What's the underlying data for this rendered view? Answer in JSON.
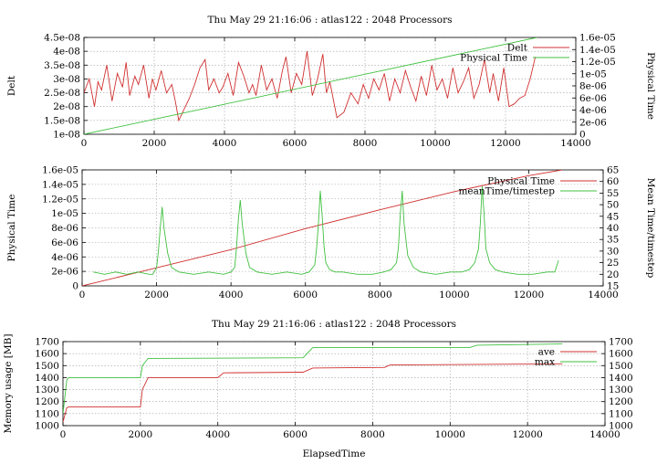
{
  "chart_data": [
    {
      "type": "line",
      "title": "Thu May 29 21:16:06 : atlas122 : 2048 Processors",
      "xlabel": "",
      "ylabel": "Delt",
      "y2label": "Physical Time",
      "xlim": [
        0,
        14000
      ],
      "ylim": [
        1e-08,
        4.5e-08
      ],
      "y2lim": [
        0,
        1.6e-05
      ],
      "xticks": [
        "0",
        "2000",
        "4000",
        "6000",
        "8000",
        "10000",
        "12000",
        "14000"
      ],
      "yticks": [
        "1e-08",
        "1.5e-08",
        "2e-08",
        "2.5e-08",
        "3e-08",
        "3.5e-08",
        "4e-08",
        "4.5e-08"
      ],
      "y2ticks": [
        "0",
        "2e-06",
        "4e-06",
        "6e-06",
        "8e-06",
        "1e-05",
        "1.2e-05",
        "1.4e-05",
        "1.6e-05"
      ],
      "grid": true,
      "legend_position": "top-right",
      "series": [
        {
          "name": "Delt",
          "axis": "y",
          "color": "#d03030",
          "x": [
            0,
            150,
            300,
            400,
            500,
            650,
            800,
            950,
            1100,
            1200,
            1300,
            1450,
            1550,
            1700,
            1850,
            1950,
            2050,
            2200,
            2350,
            2500,
            2600,
            2700,
            2850,
            3000,
            3150,
            3300,
            3450,
            3550,
            3700,
            3850,
            3950,
            4100,
            4250,
            4400,
            4550,
            4700,
            4800,
            4900,
            5050,
            5200,
            5350,
            5500,
            5650,
            5750,
            5900,
            6050,
            6200,
            6350,
            6500,
            6650,
            6800,
            6900,
            7000,
            7200,
            7400,
            7600,
            7800,
            7950,
            8100,
            8250,
            8400,
            8550,
            8700,
            8850,
            9000,
            9150,
            9300,
            9450,
            9600,
            9750,
            9900,
            10050,
            10200,
            10350,
            10500,
            10650,
            10800,
            10950,
            11100,
            11250,
            11400,
            11550,
            11650,
            11800,
            11950,
            12100,
            12250,
            12400,
            12550,
            12700,
            12850
          ],
          "y": [
            2.5e-08,
            3e-08,
            2e-08,
            2.9e-08,
            2.6e-08,
            3.5e-08,
            2.2e-08,
            3.2e-08,
            2.7e-08,
            3.6e-08,
            2.4e-08,
            3.1e-08,
            2.8e-08,
            3.5e-08,
            2.3e-08,
            3e-08,
            2.6e-08,
            3.3e-08,
            2.5e-08,
            2.8e-08,
            2.2e-08,
            1.5e-08,
            1.9e-08,
            2.3e-08,
            2.8e-08,
            3.4e-08,
            3.7e-08,
            2.6e-08,
            3e-08,
            2.5e-08,
            2.7e-08,
            3.2e-08,
            2.4e-08,
            3.6e-08,
            3.1e-08,
            2.5e-08,
            2.8e-08,
            2.4e-08,
            3.5e-08,
            2.6e-08,
            3e-08,
            2.3e-08,
            3.3e-08,
            3.8e-08,
            2.5e-08,
            3.2e-08,
            2.8e-08,
            4e-08,
            2.4e-08,
            3e-08,
            3.9e-08,
            2.5e-08,
            2.9e-08,
            1.6e-08,
            1.8e-08,
            2.5e-08,
            2.1e-08,
            2.8e-08,
            2.3e-08,
            3e-08,
            2.6e-08,
            3.2e-08,
            2.2e-08,
            3e-08,
            2.5e-08,
            3.3e-08,
            2.7e-08,
            2.2e-08,
            3.1e-08,
            2.4e-08,
            3.5e-08,
            2.6e-08,
            3e-08,
            2.3e-08,
            3.4e-08,
            2.5e-08,
            2.9e-08,
            3.4e-08,
            2.3e-08,
            2.8e-08,
            3.7e-08,
            2.5e-08,
            3.2e-08,
            2.2e-08,
            3.4e-08,
            2e-08,
            2.1e-08,
            2.3e-08,
            2.4e-08,
            3e-08,
            3.8e-08
          ]
        },
        {
          "name": "Physical Time",
          "axis": "y2",
          "color": "#40c040",
          "x": [
            0,
            12900
          ],
          "y": [
            0,
            1.6e-05
          ]
        }
      ]
    },
    {
      "type": "line",
      "title": "",
      "xlabel": "",
      "ylabel": "Physical Time",
      "y2label": "Mean Time/timestep",
      "xlim": [
        0,
        14000
      ],
      "ylim": [
        0,
        1.6e-05
      ],
      "y2lim": [
        15,
        65
      ],
      "xticks": [
        "0",
        "2000",
        "4000",
        "6000",
        "8000",
        "10000",
        "12000",
        "14000"
      ],
      "yticks": [
        "0",
        "2e-06",
        "4e-06",
        "6e-06",
        "8e-06",
        "1e-05",
        "1.2e-05",
        "1.4e-05",
        "1.6e-05"
      ],
      "y2ticks": [
        "15",
        "20",
        "25",
        "30",
        "35",
        "40",
        "45",
        "50",
        "55",
        "60",
        "65"
      ],
      "grid": true,
      "legend_position": "top-right",
      "series": [
        {
          "name": "Physical Time",
          "axis": "y",
          "color": "#d03030",
          "x": [
            0,
            2000,
            4000,
            6000,
            8000,
            10000,
            12000,
            12900
          ],
          "y": [
            0,
            2.5e-06,
            5e-06,
            7.9e-06,
            1.05e-05,
            1.3e-05,
            1.52e-05,
            1.6e-05
          ]
        },
        {
          "name": "meanTime/timestep",
          "axis": "y2",
          "color": "#40c040",
          "x": [
            300,
            600,
            900,
            1200,
            1500,
            1800,
            1900,
            2000,
            2050,
            2100,
            2150,
            2200,
            2300,
            2400,
            2600,
            3000,
            3400,
            3800,
            4000,
            4100,
            4150,
            4200,
            4250,
            4300,
            4400,
            4500,
            4700,
            5100,
            5500,
            5900,
            6100,
            6250,
            6300,
            6350,
            6400,
            6450,
            6500,
            6550,
            6650,
            6800,
            7000,
            7400,
            7800,
            8100,
            8300,
            8450,
            8500,
            8550,
            8600,
            8650,
            8750,
            8900,
            9100,
            9500,
            9900,
            10200,
            10400,
            10550,
            10650,
            10700,
            10750,
            10800,
            10850,
            10950,
            11100,
            11300,
            11700,
            12100,
            12500,
            12700,
            12800
          ],
          "y": [
            21,
            20,
            21,
            20,
            21,
            20,
            20,
            23,
            30,
            40,
            49,
            40,
            29,
            23,
            21,
            20,
            21,
            20,
            21,
            23,
            32,
            44,
            52,
            42,
            29,
            23,
            21,
            20,
            21,
            20,
            21,
            24,
            31,
            42,
            56,
            45,
            32,
            25,
            22,
            21,
            21,
            20,
            20,
            21,
            22,
            25,
            32,
            46,
            56,
            42,
            28,
            23,
            21,
            20,
            21,
            21,
            22,
            25,
            31,
            42,
            58,
            46,
            31,
            25,
            22,
            21,
            20,
            20,
            21,
            21,
            26
          ]
        }
      ]
    },
    {
      "type": "line",
      "title": "Thu May 29 21:16:06 : atlas122 : 2048 Processors",
      "xlabel": "ElapsedTime",
      "ylabel": "Memory usage [MB]",
      "y2label": "",
      "xlim": [
        0,
        14000
      ],
      "ylim": [
        1000,
        1700
      ],
      "y2lim": [
        1000,
        1700
      ],
      "xticks": [
        "0",
        "2000",
        "4000",
        "6000",
        "8000",
        "10000",
        "12000",
        "14000"
      ],
      "yticks": [
        "1000",
        "1100",
        "1200",
        "1300",
        "1400",
        "1500",
        "1600",
        "1700"
      ],
      "y2ticks": [
        "1000",
        "1100",
        "1200",
        "1300",
        "1400",
        "1500",
        "1600",
        "1700"
      ],
      "grid": true,
      "legend_position": "top-right",
      "series": [
        {
          "name": "ave",
          "axis": "y",
          "color": "#d03030",
          "x": [
            0,
            100,
            150,
            2000,
            2050,
            2200,
            4000,
            4150,
            6200,
            6450,
            8300,
            8450,
            12900
          ],
          "y": [
            1030,
            1150,
            1155,
            1155,
            1300,
            1400,
            1400,
            1440,
            1445,
            1480,
            1485,
            1505,
            1515
          ]
        },
        {
          "name": "max",
          "axis": "y",
          "color": "#40c040",
          "x": [
            0,
            100,
            150,
            2000,
            2050,
            2200,
            6200,
            6450,
            10500,
            10700,
            12900
          ],
          "y": [
            1100,
            1380,
            1400,
            1400,
            1500,
            1560,
            1565,
            1650,
            1650,
            1670,
            1680
          ]
        }
      ]
    }
  ]
}
